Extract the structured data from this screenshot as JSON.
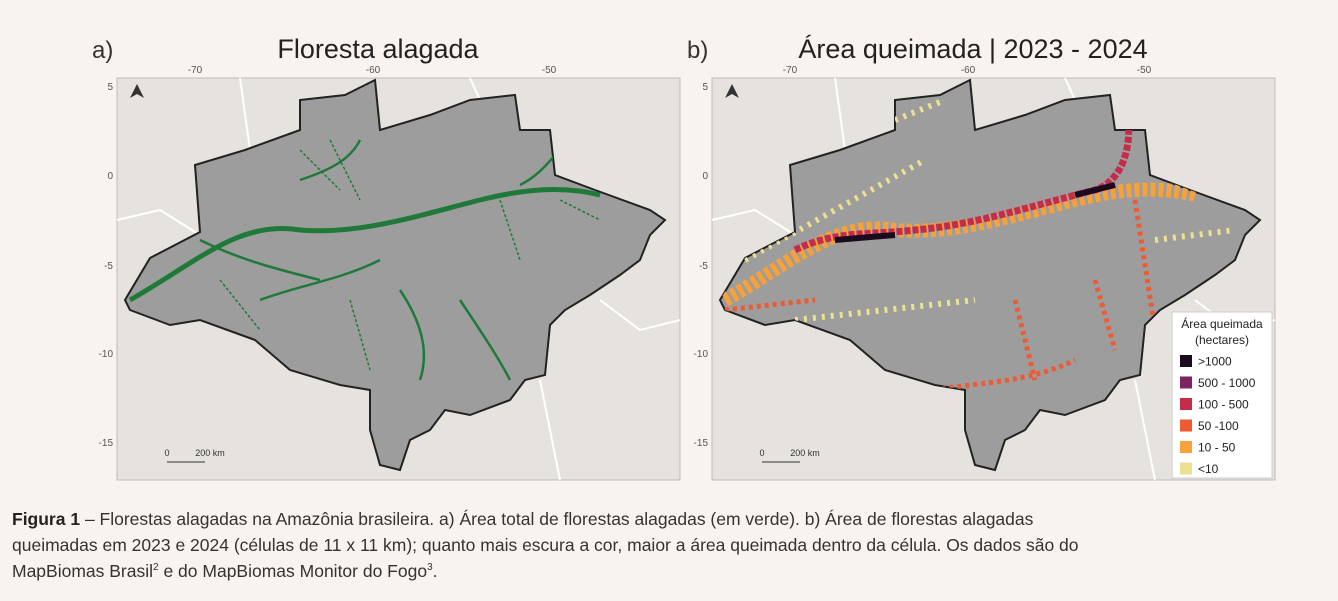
{
  "panels": [
    {
      "label": "a)",
      "title": "Floresta alagada"
    },
    {
      "label": "b)",
      "title": "Área queimada | 2023 - 2024"
    }
  ],
  "axes": {
    "lon": [
      -70,
      -60,
      -50
    ],
    "lat": [
      5,
      0,
      -5,
      -10,
      -15
    ]
  },
  "scale": {
    "start": "0",
    "end": "200 km"
  },
  "legend": {
    "title": [
      "Área queimada",
      "(hectares)"
    ],
    "items": [
      {
        "label": ">1000",
        "color": "#1c0b1f"
      },
      {
        "label": "500 - 1000",
        "color": "#7b2363"
      },
      {
        "label": "100 - 500",
        "color": "#c42c4a"
      },
      {
        "label": "50 -100",
        "color": "#ee5a33"
      },
      {
        "label": "10 - 50",
        "color": "#f7a13a"
      },
      {
        "label": "<10",
        "color": "#ebe18e"
      }
    ]
  },
  "caption": {
    "label": "Figura 1",
    "line1": " – Florestas alagadas na Amazônia brasileira. a) Área total de florestas alagadas (em verde). b) Área de florestas alagadas",
    "line2": "queimadas em 2023 e 2024 (células de 11 x 11 km); quanto mais escura a cor, maior a área queimada dentro da célula. Os dados são do",
    "line3a": "MapBiomas Brasil",
    "sup1": "2",
    "line3b": " e do MapBiomas Monitor do Fogo",
    "sup2": "3",
    "line3c": "."
  }
}
